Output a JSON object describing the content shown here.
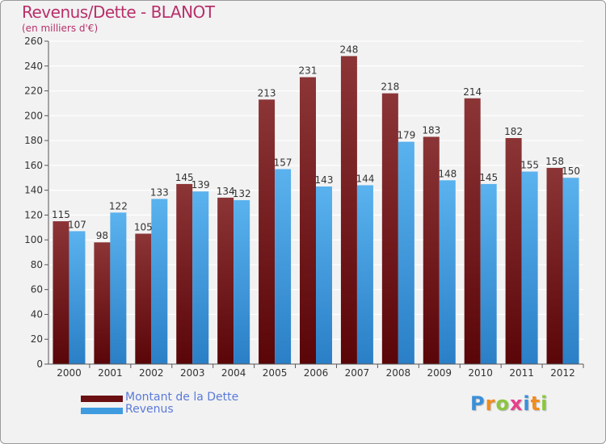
{
  "header": {
    "title": "Revenus/Dette - BLANOT",
    "subtitle": "(en milliers d'€)"
  },
  "legend": [
    {
      "label": "Montant de la Dette",
      "color": "#6b0f12"
    },
    {
      "label": "Revenus",
      "color": "#3f9be0"
    }
  ],
  "logo": {
    "letters": [
      "P",
      "r",
      "o",
      "x",
      "i",
      "t",
      "i"
    ],
    "colors": [
      "#3a8fd9",
      "#f28c1e",
      "#8cc63f",
      "#e83e8c",
      "#3a8fd9",
      "#f28c1e",
      "#8cc63f"
    ]
  },
  "chart_data": {
    "type": "bar",
    "title": "Revenus/Dette - BLANOT",
    "subtitle": "(en milliers d'€)",
    "categories": [
      "2000",
      "2001",
      "2002",
      "2003",
      "2004",
      "2005",
      "2006",
      "2007",
      "2008",
      "2009",
      "2010",
      "2011",
      "2012"
    ],
    "series": [
      {
        "name": "Montant de la Dette",
        "color": "#6b0f12",
        "values": [
          115,
          98,
          105,
          145,
          134,
          213,
          231,
          248,
          218,
          183,
          214,
          182,
          158
        ]
      },
      {
        "name": "Revenus",
        "color": "#3f9be0",
        "values": [
          107,
          122,
          133,
          139,
          132,
          157,
          143,
          144,
          179,
          148,
          145,
          155,
          150
        ]
      }
    ],
    "ylim": [
      0,
      260
    ],
    "yticks": [
      0,
      20,
      40,
      60,
      80,
      100,
      120,
      140,
      160,
      180,
      200,
      220,
      240,
      260
    ],
    "grid": true,
    "legend_position": "bottom-left"
  }
}
